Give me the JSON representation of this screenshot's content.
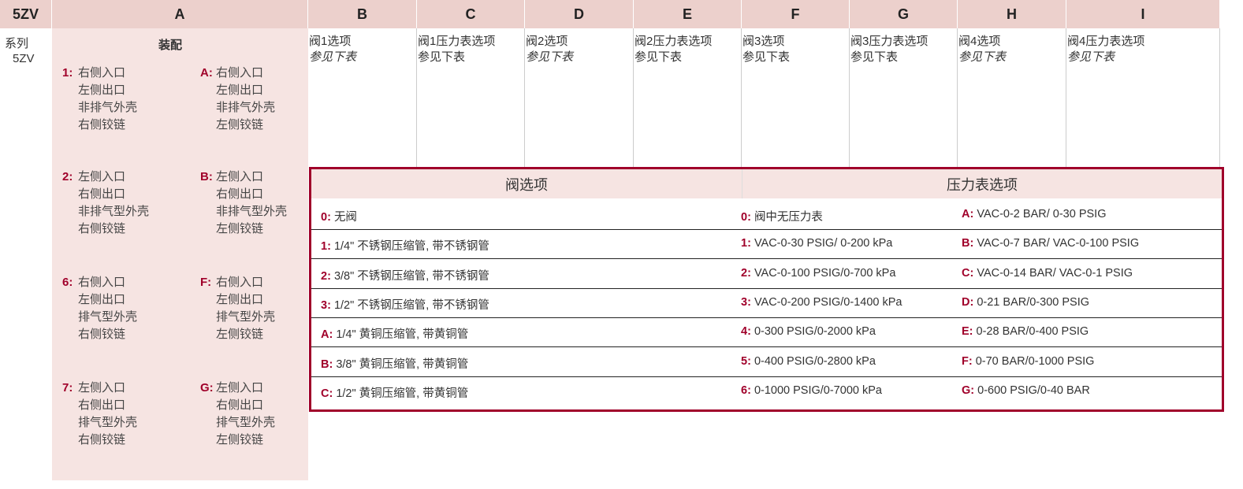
{
  "headers": [
    "5ZV",
    "A",
    "B",
    "C",
    "D",
    "E",
    "F",
    "G",
    "H",
    "I"
  ],
  "series": {
    "label": "系列",
    "value": "5ZV"
  },
  "assembly": {
    "title": "装配",
    "groups": [
      {
        "code": "1:",
        "lines": [
          "右侧入口",
          "左侧出口",
          "非排气外壳",
          "右侧铰链"
        ]
      },
      {
        "code": "A:",
        "lines": [
          "右侧入口",
          "左侧出口",
          "非排气外壳",
          "左侧铰链"
        ]
      },
      {
        "code": "2:",
        "lines": [
          "左侧入口",
          "右侧出口",
          "非排气型外壳",
          "右侧铰链"
        ]
      },
      {
        "code": "B:",
        "lines": [
          "左侧入口",
          "右侧出口",
          "非排气型外壳",
          "左侧铰链"
        ]
      },
      {
        "code": "6:",
        "lines": [
          "右侧入口",
          "左侧出口",
          "排气型外壳",
          "右侧铰链"
        ]
      },
      {
        "code": "F:",
        "lines": [
          "右侧入口",
          "左侧出口",
          "排气型外壳",
          "左侧铰链"
        ]
      },
      {
        "code": "7:",
        "lines": [
          "左侧入口",
          "右侧出口",
          "排气型外壳",
          "右侧铰链"
        ]
      },
      {
        "code": "G:",
        "lines": [
          "左侧入口",
          "右侧出口",
          "排气型外壳",
          "左侧铰链"
        ]
      }
    ]
  },
  "columns": [
    {
      "title": "阀1选项",
      "note": "参见下表",
      "italic": true
    },
    {
      "title": "阀1压力表选项",
      "note": "参见下表",
      "italic": false
    },
    {
      "title": "阀2选项",
      "note": "参见下表",
      "italic": true
    },
    {
      "title": "阀2压力表选项",
      "note": "参见下表",
      "italic": false
    },
    {
      "title": "阀3选项",
      "note": "参见下表",
      "italic": false
    },
    {
      "title": "阀3压力表选项",
      "note": "参见下表",
      "italic": false
    },
    {
      "title": "阀4选项",
      "note": "参见下表",
      "italic": true
    },
    {
      "title": "阀4压力表选项",
      "note": "参见下表",
      "italic": true
    }
  ],
  "options_table": {
    "valve_header": "阀选项",
    "gauge_header": "压力表选项",
    "rows": [
      [
        {
          "c": "0:",
          "t": "无阀"
        },
        {
          "c": "0:",
          "t": "阀中无压力表"
        },
        {
          "c": "A:",
          "t": "VAC-0-2 BAR/ 0-30 PSIG"
        }
      ],
      [
        {
          "c": "1:",
          "t": "1/4\" 不锈钢压缩管, 带不锈钢管"
        },
        {
          "c": "1:",
          "t": "VAC-0-30 PSIG/ 0-200 kPa"
        },
        {
          "c": "B:",
          "t": "VAC-0-7 BAR/ VAC-0-100 PSIG"
        }
      ],
      [
        {
          "c": "2:",
          "t": "3/8\" 不锈钢压缩管, 带不锈钢管"
        },
        {
          "c": "2:",
          "t": "VAC-0-100 PSIG/0-700 kPa"
        },
        {
          "c": "C:",
          "t": "VAC-0-14 BAR/ VAC-0-1 PSIG"
        }
      ],
      [
        {
          "c": "3:",
          "t": "1/2\" 不锈钢压缩管, 带不锈钢管"
        },
        {
          "c": "3:",
          "t": "VAC-0-200 PSIG/0-1400 kPa"
        },
        {
          "c": "D:",
          "t": "0-21 BAR/0-300 PSIG"
        }
      ],
      [
        {
          "c": "A:",
          "t": "1/4\" 黄铜压缩管, 带黄铜管"
        },
        {
          "c": "4:",
          "t": "0-300 PSIG/0-2000 kPa"
        },
        {
          "c": "E:",
          "t": "0-28 BAR/0-400 PSIG"
        }
      ],
      [
        {
          "c": "B:",
          "t": "3/8\" 黄铜压缩管, 带黄铜管"
        },
        {
          "c": "5:",
          "t": "0-400 PSIG/0-2800 kPa"
        },
        {
          "c": "F:",
          "t": "0-70 BAR/0-1000 PSIG"
        }
      ],
      [
        {
          "c": "C:",
          "t": "1/2\" 黄铜压缩管, 带黄铜管"
        },
        {
          "c": "6:",
          "t": "0-1000 PSIG/0-7000 kPa"
        },
        {
          "c": "G:",
          "t": "0-600 PSIG/0-40 BAR"
        }
      ]
    ]
  },
  "colors": {
    "accent": "#a0002a",
    "header_bg": "#ecd0cc",
    "panel_bg": "#f6e4e2"
  }
}
